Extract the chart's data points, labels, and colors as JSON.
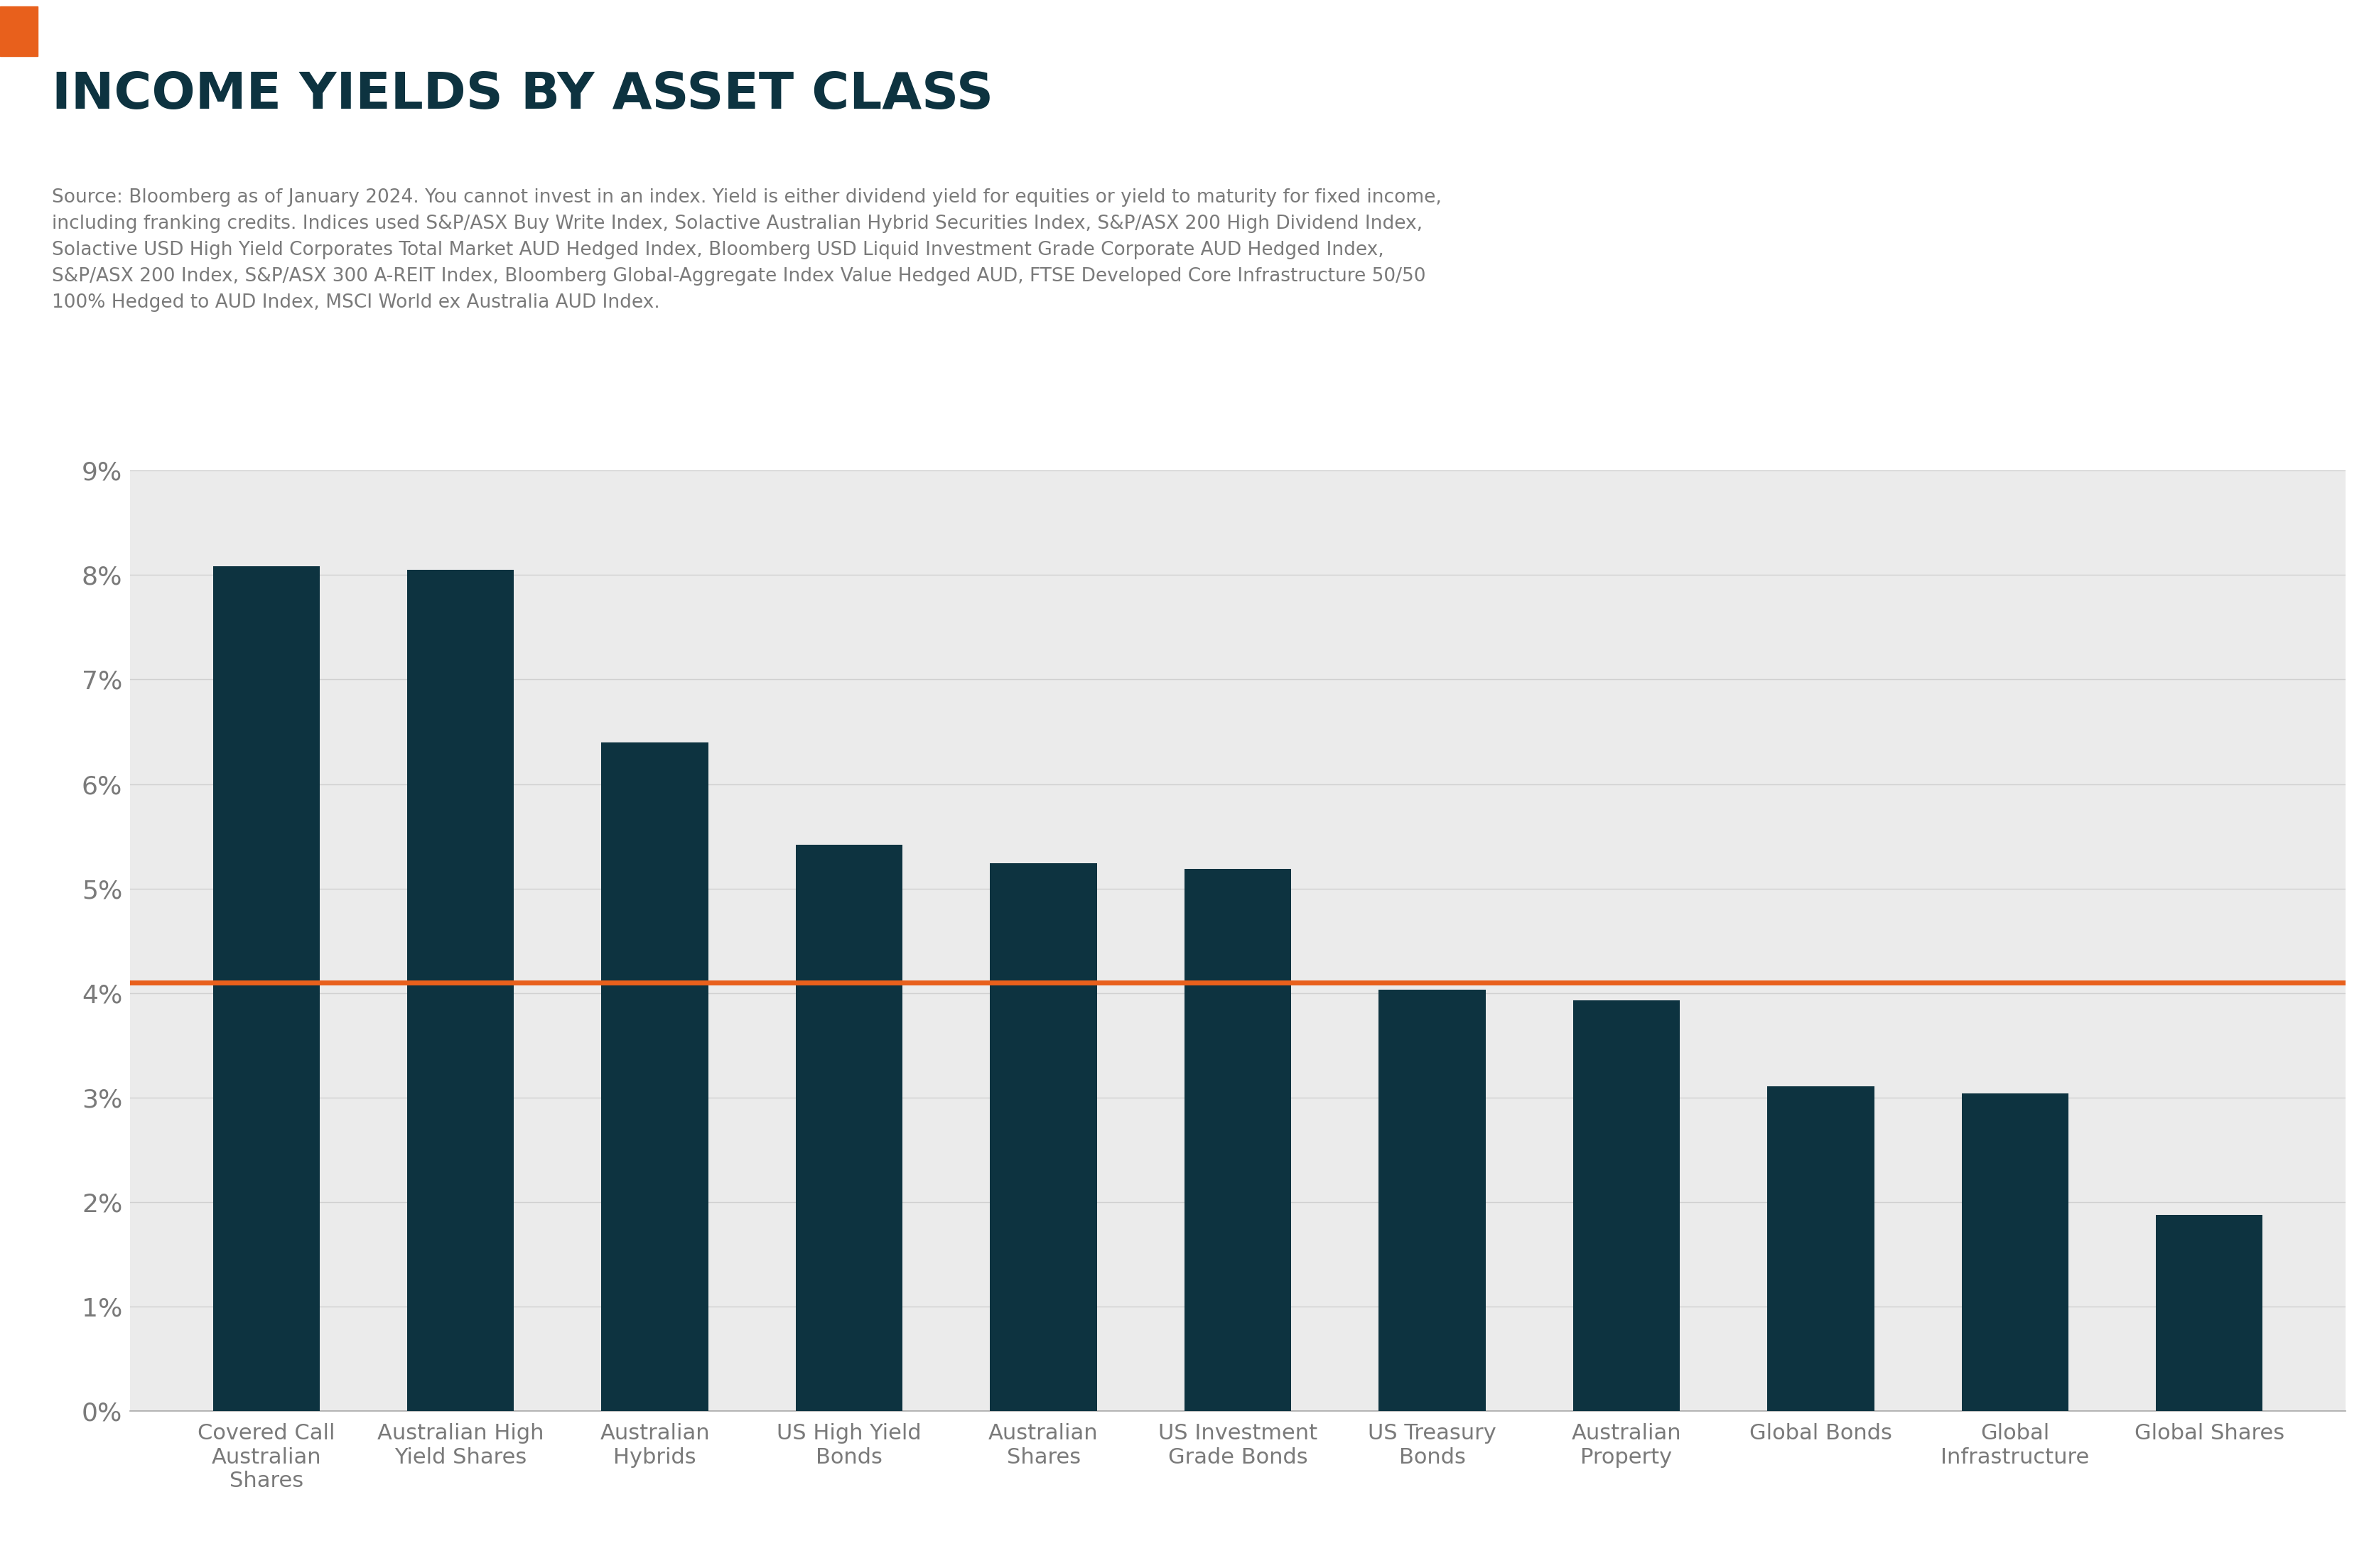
{
  "title": "INCOME YIELDS BY ASSET CLASS",
  "subtitle_line1": "Source: Bloomberg as of January 2024. You cannot invest in an index. Yield is either dividend yield for equities or yield to maturity for fixed income,",
  "subtitle_line2": "including franking credits. Indices used S&P/ASX Buy Write Index, Solactive Australian Hybrid Securities Index, S&P/ASX 200 High Dividend Index,",
  "subtitle_line3": "Solactive USD High Yield Corporates Total Market AUD Hedged Index, Bloomberg USD Liquid Investment Grade Corporate AUD Hedged Index,",
  "subtitle_line4": "S&P/ASX 200 Index, S&P/ASX 300 A-REIT Index, Bloomberg Global-Aggregate Index Value Hedged AUD, FTSE Developed Core Infrastructure 50/50",
  "subtitle_line5": "100% Hedged to AUD Index, MSCI World ex Australia AUD Index.",
  "categories": [
    "Covered Call\nAustralian\nShares",
    "Australian High\nYield Shares",
    "Australian\nHybrids",
    "US High Yield\nBonds",
    "Australian\nShares",
    "US Investment\nGrade Bonds",
    "US Treasury\nBonds",
    "Australian\nProperty",
    "Global Bonds",
    "Global\nInfrastructure",
    "Global Shares"
  ],
  "values": [
    0.0808,
    0.0805,
    0.064,
    0.0542,
    0.0524,
    0.0519,
    0.0403,
    0.0393,
    0.0311,
    0.0304,
    0.0188
  ],
  "bar_color": "#0d3340",
  "hline_value": 0.041,
  "hline_color": "#e8601c",
  "hline_linewidth": 5,
  "ylim": [
    0,
    0.09
  ],
  "yticks": [
    0.0,
    0.01,
    0.02,
    0.03,
    0.04,
    0.05,
    0.06,
    0.07,
    0.08,
    0.09
  ],
  "chart_bg_color": "#ebebeb",
  "fig_bg_color": "#ffffff",
  "title_color": "#0d3340",
  "subtitle_color": "#7a7a7a",
  "tick_color": "#7a7a7a",
  "title_fontsize": 52,
  "subtitle_fontsize": 19,
  "tick_fontsize": 26,
  "xtick_fontsize": 22,
  "orange_rect_color": "#e8601c",
  "grid_color": "#d0d0d0"
}
